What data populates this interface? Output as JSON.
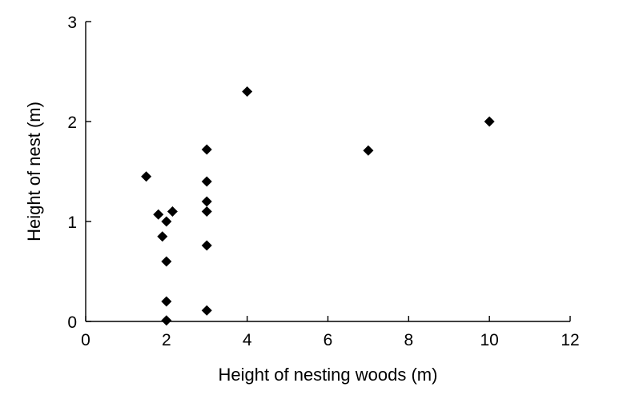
{
  "chart_data": {
    "type": "scatter",
    "title": "",
    "xlabel": "Height of nesting woods (m)",
    "ylabel": "Height of nest (m)",
    "xlim": [
      0,
      12
    ],
    "ylim": [
      0,
      3
    ],
    "x_ticks": [
      0,
      2,
      4,
      6,
      8,
      10,
      12
    ],
    "y_ticks": [
      0,
      1,
      2,
      3
    ],
    "x_tick_labels": [
      "0",
      "2",
      "4",
      "6",
      "8",
      "10",
      "12"
    ],
    "y_tick_labels": [
      "0",
      "1",
      "2",
      "3"
    ],
    "grid": false,
    "legend": "none",
    "marker": "diamond",
    "marker_color": "#000000",
    "series": [
      {
        "points": [
          {
            "x": 1.5,
            "y": 1.45
          },
          {
            "x": 1.8,
            "y": 1.07
          },
          {
            "x": 1.9,
            "y": 0.85
          },
          {
            "x": 2.0,
            "y": 1.0
          },
          {
            "x": 2.15,
            "y": 1.1
          },
          {
            "x": 2.0,
            "y": 0.6
          },
          {
            "x": 2.0,
            "y": 0.2
          },
          {
            "x": 2.0,
            "y": 0.01
          },
          {
            "x": 3.0,
            "y": 1.72
          },
          {
            "x": 3.0,
            "y": 1.4
          },
          {
            "x": 3.0,
            "y": 1.2
          },
          {
            "x": 3.0,
            "y": 1.1
          },
          {
            "x": 3.0,
            "y": 0.76
          },
          {
            "x": 3.0,
            "y": 0.11
          },
          {
            "x": 4.0,
            "y": 2.3
          },
          {
            "x": 7.0,
            "y": 1.71
          },
          {
            "x": 10.0,
            "y": 2.0
          }
        ]
      }
    ]
  }
}
